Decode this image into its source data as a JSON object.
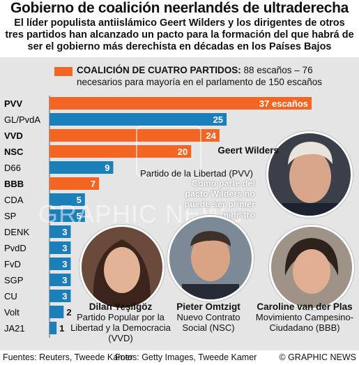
{
  "header": {
    "title": "Gobierno de coalición neerlandés de ultraderecha",
    "subtitle": "El líder populista antiislámico Geert Wilders y los dirigentes de otros tres partidos han alcanzado un pacto para la formación del que habrá de ser el gobierno más derechista en décadas en los Países Bajos"
  },
  "legend": {
    "bold_label": "COALICIÓN DE CUATRO PARTIDOS:",
    "text": " 88 escaños – 76 necesarios para  mayoría en el parlamento de 150 escaños"
  },
  "colors": {
    "coalition": "#f26522",
    "other": "#1b7fba",
    "panel": "#e5e5e5"
  },
  "chart_data": {
    "type": "bar",
    "orientation": "horizontal",
    "categories": [
      "PVV",
      "GL/PvdA",
      "VVD",
      "NSC",
      "D66",
      "BBB",
      "CDA",
      "SP",
      "DENK",
      "PvdD",
      "FvD",
      "SGP",
      "CU",
      "Volt",
      "JA21"
    ],
    "values": [
      37,
      25,
      24,
      20,
      9,
      7,
      5,
      5,
      3,
      3,
      3,
      3,
      3,
      2,
      1
    ],
    "coalition": [
      true,
      false,
      true,
      true,
      false,
      true,
      false,
      false,
      false,
      false,
      false,
      false,
      false,
      false,
      false
    ],
    "value_labels": [
      "37 escaños",
      "25",
      "24",
      "20",
      "9",
      "7",
      "5",
      "5",
      "3",
      "3",
      "3",
      "3",
      "3",
      "2",
      "1"
    ],
    "xlim": [
      0,
      37
    ]
  },
  "people": [
    {
      "name": "Geert Wilders",
      "party": "Partido de la Libertad (PVV)",
      "note": "Como parte del pacto Wilders no puede ser primer ministro"
    },
    {
      "name": "Dilan Yeşilgöz",
      "party": "Partido Popular por la Libertad y la Democracia (VVD)"
    },
    {
      "name": "Pieter Omtzigt",
      "party": "Nuevo Contrato Social (NSC)"
    },
    {
      "name": "Caroline van der Plas",
      "party": "Movimiento Campesino-Ciudadano (BBB)"
    }
  ],
  "watermark": "GRAPHIC NEWS",
  "footer": {
    "sources": "Fuentes: Reuters, Tweede Kamer",
    "photos": "Fotos: Getty Images, Tweede Kamer",
    "credit": "© GRAPHIC NEWS"
  }
}
